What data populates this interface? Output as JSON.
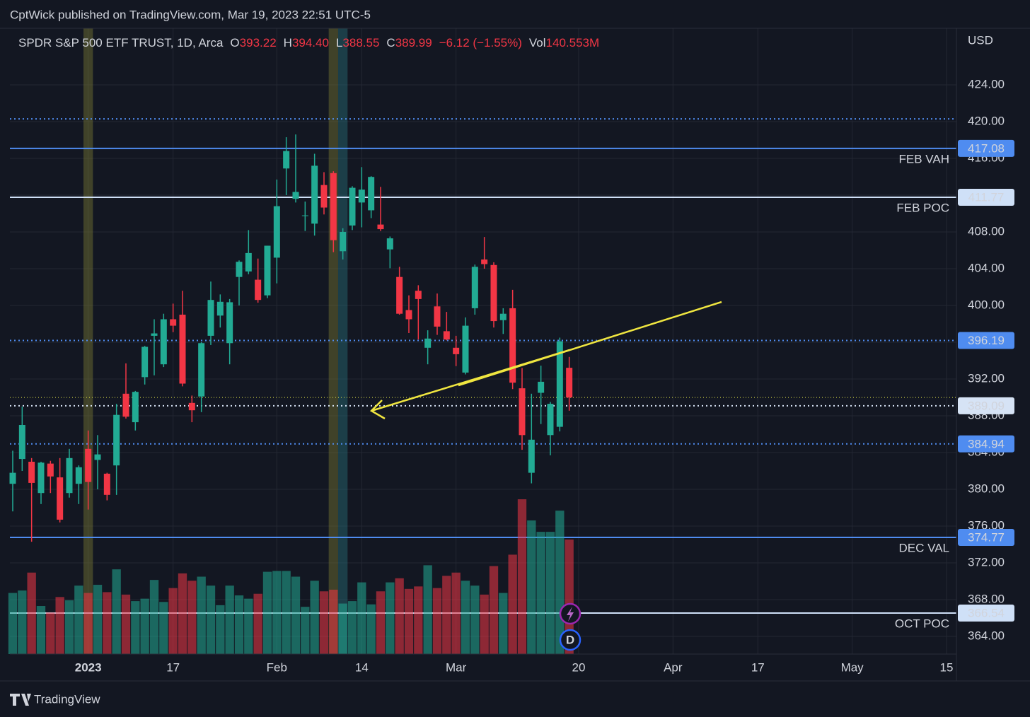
{
  "header": {
    "text": "CptWick published on TradingView.com, Mar 19, 2023 22:51 UTC-5"
  },
  "footer": {
    "brand": "TradingView"
  },
  "chart_data": {
    "type": "candlestick",
    "title": "SPDR S&P 500 ETF TRUST, 1D, Arca",
    "legend": [
      {
        "key": "O",
        "text": "393.22"
      },
      {
        "key": "H",
        "text": "394.40"
      },
      {
        "key": "L",
        "text": "388.55"
      },
      {
        "key": "C",
        "text": "389.99"
      }
    ],
    "change": "−6.12 (−1.55%)",
    "volume_legend": {
      "key": "Vol",
      "text": "140.553M"
    },
    "y_axis_label": "USD",
    "event_badge": "D",
    "categories": [
      null,
      null,
      null,
      null,
      null,
      null,
      null,
      null,
      "2023",
      null,
      null,
      null,
      null,
      null,
      null,
      null,
      null,
      "17",
      null,
      null,
      null,
      null,
      null,
      null,
      null,
      null,
      null,
      null,
      "Feb",
      null,
      null,
      null,
      null,
      null,
      null,
      null,
      null,
      "14",
      null,
      null,
      null,
      null,
      null,
      null,
      null,
      null,
      null,
      "Mar",
      null,
      null,
      null,
      null,
      null,
      null,
      null,
      null,
      null,
      null,
      null,
      null,
      "20",
      null,
      null,
      null,
      null,
      null,
      null,
      null,
      null,
      null,
      "Apr",
      null,
      null,
      null,
      null,
      null,
      null,
      null,
      null,
      "17",
      null,
      null,
      null,
      null,
      null,
      null,
      null,
      null,
      null,
      "May",
      null,
      null,
      null,
      null,
      null,
      null,
      null,
      null,
      null,
      "15"
    ],
    "ohlc": [
      [
        380.6,
        384.2,
        377.6,
        381.8
      ],
      [
        383.3,
        389.0,
        382.0,
        387.0
      ],
      [
        383.0,
        383.4,
        374.3,
        380.7
      ],
      [
        379.6,
        383.0,
        378.4,
        382.9
      ],
      [
        382.8,
        383.1,
        379.6,
        381.4
      ],
      [
        381.3,
        383.4,
        376.4,
        376.7
      ],
      [
        379.6,
        384.4,
        379.1,
        383.4
      ],
      [
        380.6,
        382.6,
        378.4,
        382.4
      ],
      [
        384.4,
        386.4,
        377.8,
        380.8
      ],
      [
        383.2,
        385.9,
        380.0,
        383.8
      ],
      [
        381.7,
        381.8,
        378.8,
        379.4
      ],
      [
        382.6,
        389.3,
        379.4,
        388.1
      ],
      [
        390.4,
        393.7,
        387.7,
        387.9
      ],
      [
        387.3,
        390.7,
        386.4,
        390.6
      ],
      [
        392.2,
        395.6,
        391.4,
        395.5
      ],
      [
        396.7,
        398.5,
        392.4,
        396.96
      ],
      [
        393.6,
        399.1,
        393.3,
        398.5
      ],
      [
        398.5,
        400.2,
        397.1,
        397.8
      ],
      [
        399.0,
        401.6,
        391.2,
        391.5
      ],
      [
        389.4,
        390.2,
        387.3,
        388.6
      ],
      [
        390.1,
        396.0,
        388.4,
        395.9
      ],
      [
        396.7,
        402.6,
        395.7,
        400.6
      ],
      [
        398.9,
        401.2,
        397.6,
        400.4
      ],
      [
        395.9,
        400.7,
        393.6,
        400.35
      ],
      [
        403.1,
        404.9,
        400.0,
        404.75
      ],
      [
        403.7,
        408.2,
        403.4,
        405.7
      ],
      [
        402.8,
        405.1,
        400.3,
        400.6
      ],
      [
        401.1,
        406.5,
        400.8,
        406.5
      ],
      [
        405.2,
        413.7,
        402.4,
        410.8
      ],
      [
        414.9,
        418.3,
        412.0,
        416.8
      ],
      [
        411.6,
        418.6,
        411.2,
        412.35
      ],
      [
        409.8,
        411.3,
        408.1,
        409.8
      ],
      [
        408.9,
        416.5,
        407.6,
        415.2
      ],
      [
        413.1,
        414.5,
        409.9,
        410.65
      ],
      [
        414.4,
        414.6,
        405.8,
        407.1
      ],
      [
        405.9,
        408.4,
        405.0,
        408.0
      ],
      [
        408.7,
        412.97,
        408.2,
        412.8
      ],
      [
        411.2,
        415.05,
        408.5,
        412.6
      ],
      [
        410.35,
        414.06,
        409.5,
        413.98
      ],
      [
        408.8,
        412.9,
        408.1,
        408.3
      ],
      [
        406.1,
        407.5,
        404.05,
        407.3
      ],
      [
        403.1,
        404.2,
        399.0,
        399.1
      ],
      [
        399.5,
        401.1,
        397.0,
        398.5
      ],
      [
        401.6,
        402.2,
        396.3,
        400.7
      ],
      [
        395.4,
        397.3,
        393.6,
        396.4
      ],
      [
        399.9,
        401.3,
        396.8,
        397.7
      ],
      [
        397.2,
        399.3,
        396.2,
        396.3
      ],
      [
        395.4,
        396.7,
        393.4,
        394.7
      ],
      [
        392.7,
        398.7,
        392.5,
        397.8
      ],
      [
        399.7,
        404.45,
        399.0,
        404.2
      ],
      [
        405.0,
        407.45,
        404.0,
        404.5
      ],
      [
        404.4,
        404.7,
        397.6,
        398.3
      ],
      [
        398.4,
        399.7,
        396.9,
        399.1
      ],
      [
        399.7,
        401.7,
        390.9,
        391.6
      ],
      [
        390.99,
        393.2,
        384.3,
        385.9
      ],
      [
        381.8,
        390.4,
        380.65,
        385.4
      ],
      [
        390.5,
        393.45,
        387.1,
        391.7
      ],
      [
        385.9,
        389.5,
        383.7,
        389.3
      ],
      [
        386.8,
        396.5,
        386.3,
        396.1
      ],
      [
        393.22,
        394.4,
        388.55,
        389.99
      ],
      null,
      null,
      null,
      null,
      null,
      null,
      null,
      null,
      null,
      null,
      null,
      null,
      null,
      null,
      null,
      null,
      null,
      null,
      null,
      null,
      null,
      null,
      null,
      null,
      null,
      null,
      null,
      null,
      null,
      null,
      null,
      null,
      null,
      null,
      null,
      null,
      null,
      null,
      null,
      null
    ],
    "volume": [
      75,
      78,
      100,
      59,
      51,
      70,
      66,
      84,
      75,
      85,
      76,
      104,
      73,
      65,
      68,
      91,
      64,
      81,
      99,
      90,
      95,
      84,
      60,
      84,
      72,
      68,
      74,
      101,
      102,
      102,
      95,
      58,
      90,
      77,
      79,
      62,
      65,
      88,
      61,
      77,
      88,
      93,
      80,
      83,
      109,
      81,
      96,
      100,
      90,
      84,
      73,
      108,
      75,
      122,
      190,
      164,
      150,
      150,
      176,
      140.553,
      null,
      null,
      null,
      null,
      null,
      null,
      null,
      null,
      null,
      null,
      null,
      null,
      null,
      null,
      null,
      null,
      null,
      null,
      null,
      null,
      null,
      null,
      null,
      null,
      null,
      null,
      null,
      null,
      null,
      null,
      null,
      null,
      null,
      null,
      null,
      null,
      null,
      null,
      null,
      null
    ],
    "up_color": "#22ab94",
    "down_color": "#f23645",
    "ylim": [
      362.08,
      430.15
    ],
    "yticks": [
      {
        "value": 364,
        "label": "364.00"
      },
      {
        "value": 368,
        "label": "368.00"
      },
      {
        "value": 372,
        "label": "372.00"
      },
      {
        "value": 376,
        "label": "376.00"
      },
      {
        "value": 380,
        "label": "380.00"
      },
      {
        "value": 384,
        "label": "384.00"
      },
      {
        "value": 388,
        "label": "388.00"
      },
      {
        "value": 392,
        "label": "392.00"
      },
      {
        "value": 396,
        "label": "396.00"
      },
      {
        "value": 400,
        "label": "400.00"
      },
      {
        "value": 404,
        "label": "404.00"
      },
      {
        "value": 408,
        "label": "408.00"
      },
      {
        "value": 412,
        "label": "412.00"
      },
      {
        "value": 416,
        "label": "416.00"
      },
      {
        "value": 420,
        "label": "420.00"
      },
      {
        "value": 424,
        "label": "424.00"
      }
    ],
    "y2lim": [
      0,
      768
    ],
    "grid": true,
    "last_price": {
      "value": 389.99,
      "color": "#e8e84a"
    },
    "bands": [
      {
        "index": 8,
        "color": "rgba(120,120,50,0.45)"
      },
      {
        "index": 34,
        "color": "rgba(120,120,50,0.45)"
      },
      {
        "index": 35,
        "color": "rgba(40,110,120,0.45)"
      }
    ],
    "levels": [
      {
        "value": 417.08,
        "label": "FEB VAH",
        "color": "#4f8cf0",
        "style": "solid",
        "tag_text": "#ffffff"
      },
      {
        "value": 411.77,
        "label": "FEB POC",
        "color": "#cfe0f7",
        "style": "solid",
        "tag_text": "#131722"
      },
      {
        "value": 396.19,
        "color": "#4f8cf0",
        "style": "dotted",
        "tag_text": "#ffffff"
      },
      {
        "value": 389.09,
        "color": "#d6e3f5",
        "style": "dotted",
        "tag_text": "#131722"
      },
      {
        "value": 384.94,
        "color": "#4f8cf0",
        "style": "dotted",
        "tag_text": "#ffffff"
      },
      {
        "value": 374.77,
        "label": "DEC VAL",
        "color": "#4f8cf0",
        "style": "solid",
        "tag_text": "#ffffff"
      },
      {
        "value": 366.54,
        "label": "OCT POC",
        "color": "#cfe0f7",
        "style": "solid",
        "tag_text": "#131722"
      },
      {
        "value": 420.3,
        "color": "#4f8cf0",
        "style": "dotted"
      }
    ]
  }
}
